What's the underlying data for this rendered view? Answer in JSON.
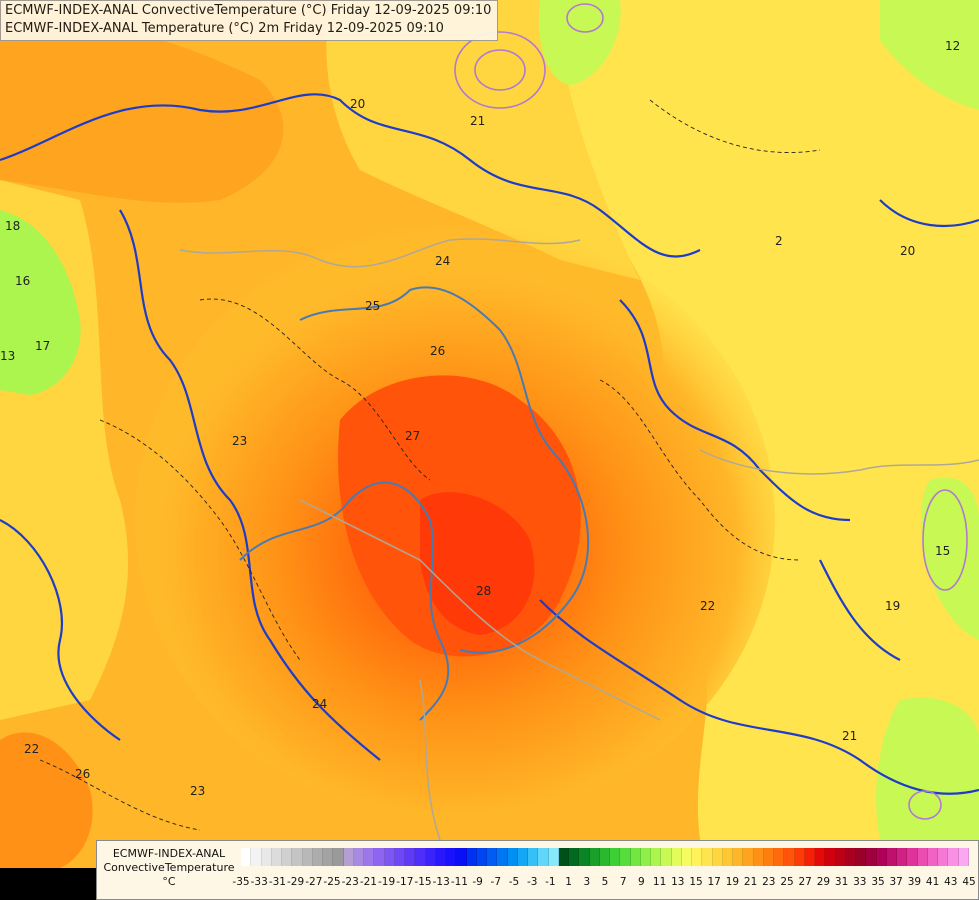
{
  "title_lines": [
    "ECMWF-INDEX-ANAL ConvectiveTemperature (°C) Friday 12-09-2025 09:10",
    "ECMWF-INDEX-ANAL Temperature (°C) 2m Friday 12-09-2025 09:10"
  ],
  "legend": {
    "line1": "ECMWF-INDEX-ANAL",
    "line2": "ConvectiveTemperature",
    "line3": "°C",
    "colors": [
      "#ffffff",
      "#f3f3f3",
      "#e8e8e8",
      "#dcdcdc",
      "#d0d0d0",
      "#c4c4c4",
      "#b8b8b8",
      "#acacac",
      "#a3a3a3",
      "#9a9a9a",
      "#b49ed2",
      "#a88be0",
      "#9b77ea",
      "#8c65f0",
      "#7d56f4",
      "#6e48f6",
      "#5f3bf8",
      "#4e2ffa",
      "#3c23fb",
      "#2a18fc",
      "#1a12fb",
      "#0a10f5",
      "#0030f0",
      "#0045f2",
      "#005cf2",
      "#0077f2",
      "#0090f4",
      "#12a8f6",
      "#36c0f8",
      "#60d6fa",
      "#8ae8fb",
      "#00501a",
      "#006a1e",
      "#0a8424",
      "#1aa02a",
      "#2ab830",
      "#3ece36",
      "#58dc3c",
      "#74e642",
      "#90ee48",
      "#acf44e",
      "#c8f854",
      "#e2fc5a",
      "#f6fc60",
      "#fff25a",
      "#ffe44e",
      "#ffd640",
      "#ffc832",
      "#ffb628",
      "#ffa41e",
      "#ff9216",
      "#ff7e10",
      "#ff6a0c",
      "#ff540a",
      "#ff3a08",
      "#f62008",
      "#e40a0a",
      "#d0000e",
      "#bc0016",
      "#a8001e",
      "#9a0028",
      "#a00040",
      "#b00058",
      "#c0106e",
      "#d02084",
      "#de349a",
      "#ea4cb0",
      "#f262c4",
      "#f678d6",
      "#fa90e4",
      "#fca8f0"
    ],
    "ticks": [
      "-35",
      "-33",
      "-31",
      "-29",
      "-27",
      "-25",
      "-23",
      "-21",
      "-19",
      "-17",
      "-15",
      "-13",
      "-11",
      "-9",
      "-7",
      "-5",
      "-3",
      "-1",
      "1",
      "3",
      "5",
      "7",
      "9",
      "11",
      "13",
      "15",
      "17",
      "19",
      "21",
      "23",
      "25",
      "27",
      "29",
      "31",
      "33",
      "35",
      "37",
      "39",
      "41",
      "43",
      "45"
    ]
  },
  "contour_labels": [
    "20",
    "21",
    "22",
    "23",
    "24",
    "25",
    "26",
    "27",
    "28",
    "19",
    "18",
    "17",
    "16",
    "15",
    "13",
    "12",
    "2"
  ]
}
